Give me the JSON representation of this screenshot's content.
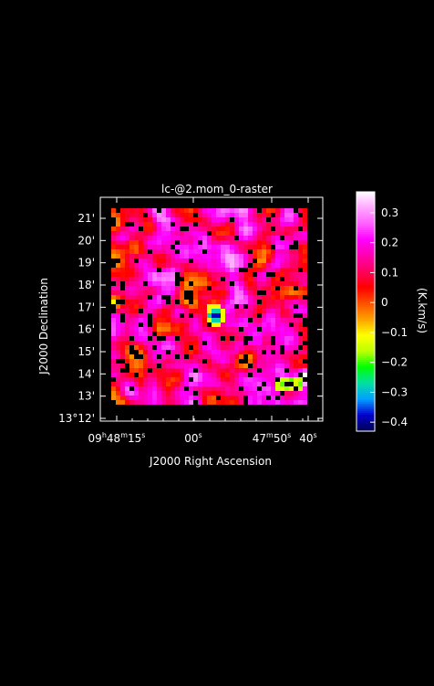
{
  "chart_data": {
    "type": "heatmap",
    "title": "lc-@2.mom_0-raster",
    "xlabel": "J2000 Right Ascension",
    "ylabel": "J2000 Declination",
    "x_ticks": [
      {
        "h": "09",
        "m": "48",
        "s": "15",
        "label_parts": [
          "09",
          "h",
          "48",
          "m",
          "15",
          "s"
        ]
      },
      {
        "label_parts": [
          "00",
          "s"
        ]
      },
      {
        "label_parts": [
          "47",
          "m",
          "50",
          "s"
        ]
      },
      {
        "label_parts": [
          "40",
          "s"
        ]
      }
    ],
    "y_ticks": [
      "13°12'",
      "13'",
      "14'",
      "15'",
      "16'",
      "17'",
      "18'",
      "19'",
      "20'",
      "21'"
    ],
    "y_values_arcmin": [
      12,
      13,
      14,
      15,
      16,
      17,
      18,
      19,
      20,
      21
    ],
    "colorbar": {
      "label": "(K.km/s)",
      "range": [
        -0.43,
        0.37
      ],
      "ticks": [
        {
          "value": 0.3,
          "label": "0.3"
        },
        {
          "value": 0.2,
          "label": "0.2"
        },
        {
          "value": 0.1,
          "label": "0.1"
        },
        {
          "value": 0.0,
          "label": "0"
        },
        {
          "value": -0.1,
          "label": "−0.1"
        },
        {
          "value": -0.2,
          "label": "−0.2"
        },
        {
          "value": -0.3,
          "label": "−0.3"
        },
        {
          "value": -0.4,
          "label": "−0.4"
        }
      ],
      "colormap": [
        "#000050",
        "#0000d0",
        "#00a0ff",
        "#00e0a0",
        "#00ff00",
        "#c0ff00",
        "#ffff00",
        "#ffa000",
        "#ff5000",
        "#ff0000",
        "#ff0060",
        "#ff00b0",
        "#ff00ff",
        "#ff60ff",
        "#ffa8ff",
        "#ffffff"
      ]
    },
    "grid": false,
    "background": "#000000",
    "foreground": "#ffffff"
  }
}
